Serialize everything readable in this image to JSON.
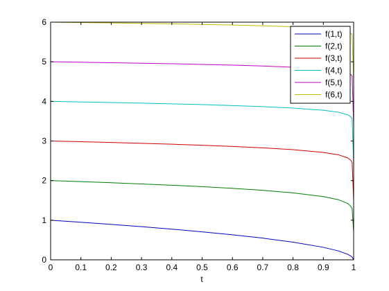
{
  "chart_data": {
    "type": "line",
    "title": "",
    "xlabel": "t",
    "ylabel": "",
    "xlim": [
      0,
      1
    ],
    "ylim": [
      0,
      6
    ],
    "xticks": [
      "0",
      "0.1",
      "0.2",
      "0.3",
      "0.4",
      "0.5",
      "0.6",
      "0.7",
      "0.8",
      "0.9",
      "1"
    ],
    "yticks": [
      "0",
      "1",
      "2",
      "3",
      "4",
      "5",
      "6"
    ],
    "grid": false,
    "legend_position": "top-right",
    "x": [
      0,
      0.1,
      0.2,
      0.3,
      0.4,
      0.5,
      0.6,
      0.7,
      0.8,
      0.9,
      0.95,
      0.98,
      0.99,
      0.995,
      1.0
    ],
    "series": [
      {
        "name": "f(1,t)",
        "color": "#0000bf",
        "values": [
          1.0,
          0.948,
          0.894,
          0.837,
          0.775,
          0.707,
          0.632,
          0.548,
          0.447,
          0.316,
          0.224,
          0.141,
          0.1,
          0.071,
          0.0
        ]
      },
      {
        "name": "f(2,t)",
        "color": "#008000",
        "values": [
          2.0,
          1.974,
          1.946,
          1.916,
          1.883,
          1.847,
          1.804,
          1.755,
          1.691,
          1.597,
          1.518,
          1.424,
          1.357,
          1.296,
          0.7
        ]
      },
      {
        "name": "f(3,t)",
        "color": "#d00000",
        "values": [
          3.0,
          2.982,
          2.962,
          2.942,
          2.919,
          2.892,
          2.863,
          2.828,
          2.782,
          2.712,
          2.651,
          2.574,
          2.517,
          2.464,
          1.5
        ]
      },
      {
        "name": "f(4,t)",
        "color": "#00bfbf",
        "values": [
          4.0,
          3.987,
          3.971,
          3.955,
          3.938,
          3.918,
          3.895,
          3.868,
          3.832,
          3.776,
          3.727,
          3.663,
          3.614,
          3.568,
          2.4
        ]
      },
      {
        "name": "f(5,t)",
        "color": "#bf00bf",
        "values": [
          5.0,
          4.989,
          4.977,
          4.964,
          4.95,
          4.933,
          4.915,
          4.893,
          4.863,
          4.817,
          4.776,
          4.721,
          4.68,
          4.64,
          3.4
        ]
      },
      {
        "name": "f(6,t)",
        "color": "#bfbf00",
        "values": [
          6.0,
          5.991,
          5.981,
          5.97,
          5.958,
          5.944,
          5.928,
          5.909,
          5.884,
          5.844,
          5.808,
          5.761,
          5.724,
          5.689,
          4.5
        ]
      }
    ]
  }
}
